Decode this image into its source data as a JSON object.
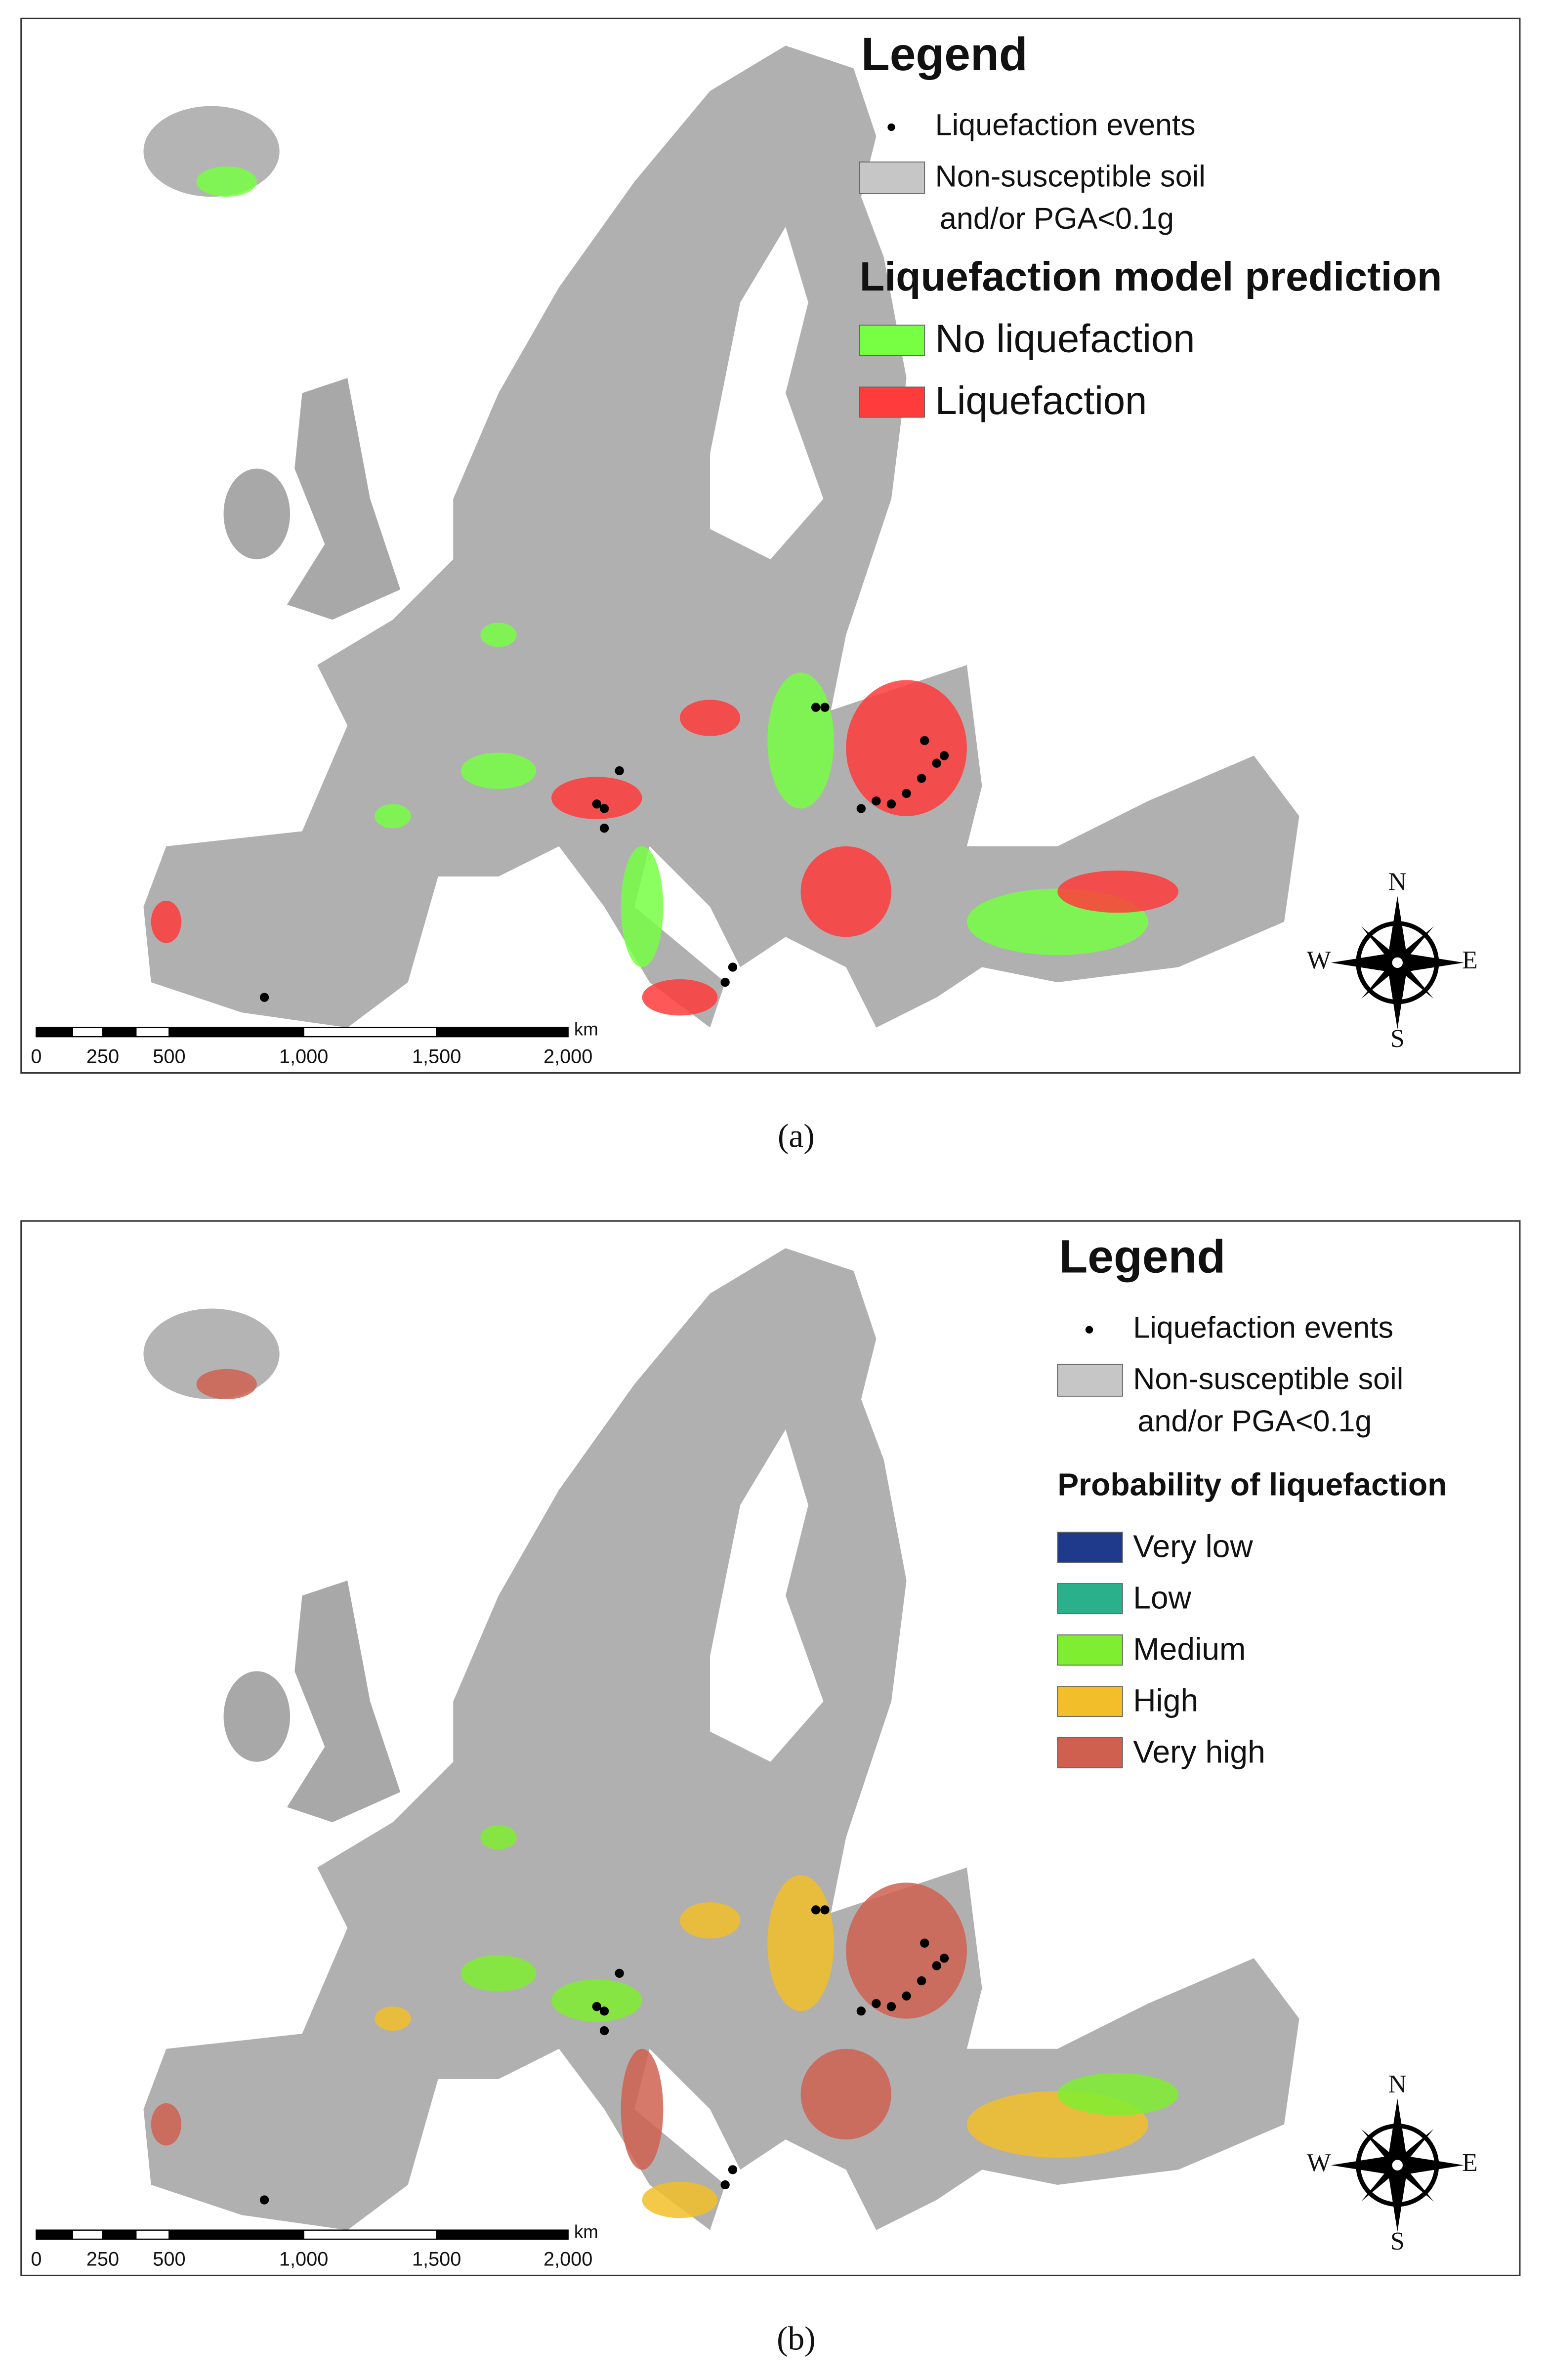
{
  "panels": [
    {
      "caption": "(a)",
      "legend": {
        "title": "Legend",
        "events": "Liquefaction events",
        "non_susceptible": [
          "Non-susceptible soil",
          "and/or PGA<0.1g"
        ],
        "classes_title": "Liquefaction model prediction",
        "classes": [
          {
            "label": "No liquefaction",
            "color": "#77ff44"
          },
          {
            "label": "Liquefaction",
            "color": "#ff3b3b"
          }
        ]
      },
      "scale_bar": {
        "labels": [
          "0",
          "250",
          "500",
          "1,000",
          "1,500",
          "2,000"
        ],
        "unit": "km"
      },
      "compass": {
        "north": "N",
        "east": "E",
        "south": "S",
        "west": "W"
      }
    },
    {
      "caption": "(b)",
      "legend": {
        "title": "Legend",
        "events": "Liquefaction events",
        "non_susceptible": [
          "Non-susceptible soil",
          "and/or PGA<0.1g"
        ],
        "classes_title": "Probability of liquefaction",
        "classes": [
          {
            "label": "Very low",
            "color": "#1f3a8a"
          },
          {
            "label": "Low",
            "color": "#2ab08a"
          },
          {
            "label": "Medium",
            "color": "#80ee30"
          },
          {
            "label": "High",
            "color": "#f2bf2a"
          },
          {
            "label": "Very high",
            "color": "#cf6050"
          }
        ]
      },
      "scale_bar": {
        "labels": [
          "0",
          "250",
          "500",
          "1,000",
          "1,500",
          "2,000"
        ],
        "unit": "km"
      },
      "compass": {
        "north": "N",
        "east": "E",
        "south": "S",
        "west": "W"
      }
    }
  ]
}
